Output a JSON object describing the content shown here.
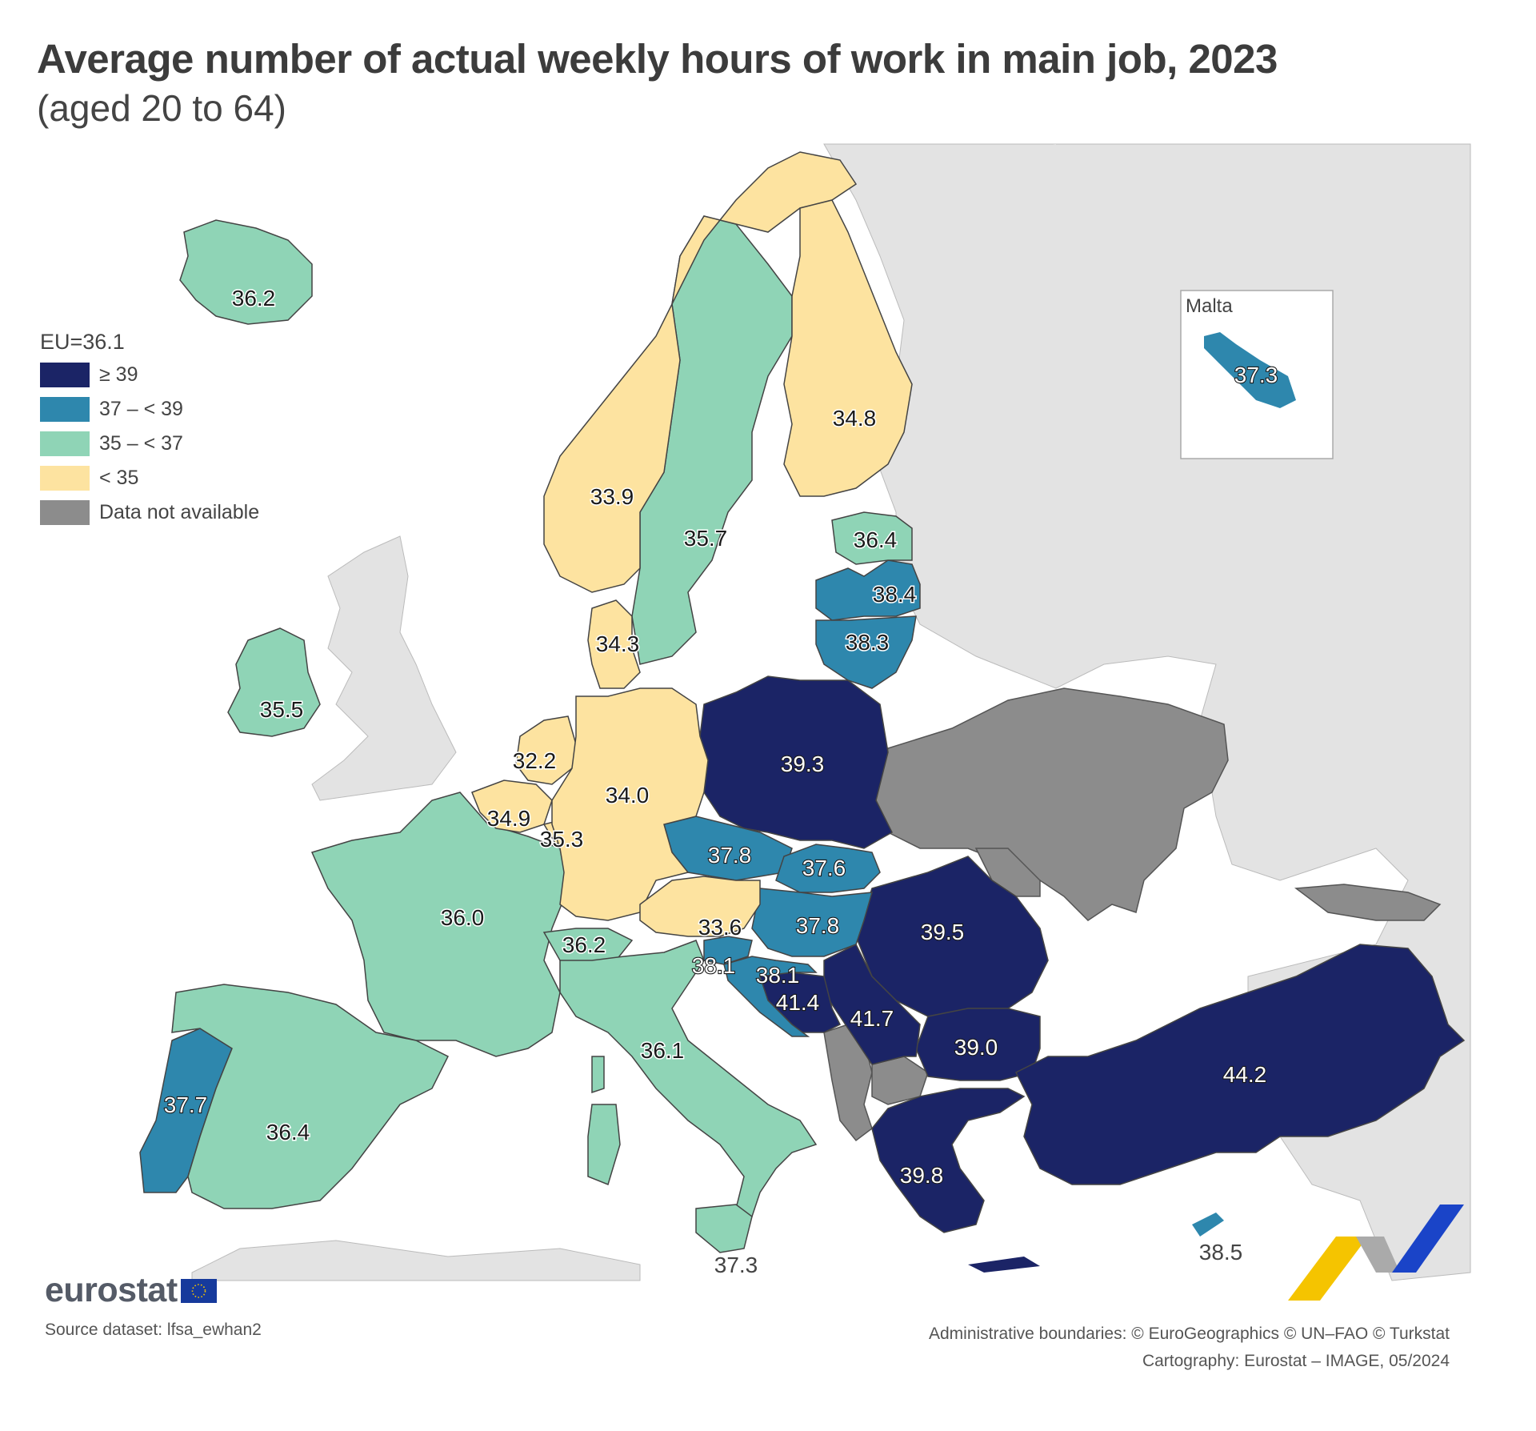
{
  "title": "Average number of actual weekly hours of work in main job, 2023",
  "subtitle": "(aged 20 to 64)",
  "legend": {
    "eu_label": "EU=36.1",
    "classes": [
      {
        "label": "≥ 39",
        "color": "#1b2466"
      },
      {
        "label": "37 – < 39",
        "color": "#2e87ad"
      },
      {
        "label": "35 – < 37",
        "color": "#8fd4b6"
      },
      {
        "label": "< 35",
        "color": "#fde3a0"
      },
      {
        "label": "Data not available",
        "color": "#8c8c8c"
      }
    ]
  },
  "colors": {
    "sea": "#ffffff",
    "non_covered_land": "#e3e3e3",
    "borders": "#555555"
  },
  "inset": {
    "title": "Malta"
  },
  "countries": [
    {
      "name": "Iceland",
      "value": "36.2"
    },
    {
      "name": "Norway",
      "value": "33.9"
    },
    {
      "name": "Sweden",
      "value": "35.7"
    },
    {
      "name": "Finland",
      "value": "34.8"
    },
    {
      "name": "Estonia",
      "value": "36.4"
    },
    {
      "name": "Latvia",
      "value": "38.4"
    },
    {
      "name": "Lithuania",
      "value": "38.3"
    },
    {
      "name": "Denmark",
      "value": "34.3"
    },
    {
      "name": "Ireland",
      "value": "35.5"
    },
    {
      "name": "Netherlands",
      "value": "32.2"
    },
    {
      "name": "Belgium",
      "value": "34.9"
    },
    {
      "name": "Luxembourg",
      "value": "35.3"
    },
    {
      "name": "Germany",
      "value": "34.0"
    },
    {
      "name": "Poland",
      "value": "39.3"
    },
    {
      "name": "Czechia",
      "value": "37.8"
    },
    {
      "name": "Slovakia",
      "value": "37.6"
    },
    {
      "name": "Hungary",
      "value": "37.8"
    },
    {
      "name": "Austria",
      "value": "33.6"
    },
    {
      "name": "Switzerland",
      "value": "36.2"
    },
    {
      "name": "France",
      "value": "36.0"
    },
    {
      "name": "Slovenia",
      "value": "38.1"
    },
    {
      "name": "Croatia",
      "value": "38.1"
    },
    {
      "name": "Bosnia and Herzegovina",
      "value": "41.4"
    },
    {
      "name": "Serbia",
      "value": "41.7"
    },
    {
      "name": "Romania",
      "value": "39.5"
    },
    {
      "name": "Bulgaria",
      "value": "39.0"
    },
    {
      "name": "Italy",
      "value": "36.1"
    },
    {
      "name": "Portugal",
      "value": "37.7"
    },
    {
      "name": "Spain",
      "value": "36.4"
    },
    {
      "name": "Greece",
      "value": "39.8"
    },
    {
      "name": "Türkiye",
      "value": "44.2"
    },
    {
      "name": "Cyprus",
      "value": "38.5"
    },
    {
      "name": "Malta",
      "value": "37.3"
    },
    {
      "name": "Italy (Sicily)",
      "value": "37.3"
    }
  ],
  "logo": "eurostat",
  "source": "Source dataset: lfsa_ewhan2",
  "credits": {
    "line1": "Administrative boundaries: © EuroGeographics © UN–FAO © Turkstat",
    "line2": "Cartography: Eurostat – IMAGE, 05/2024"
  }
}
